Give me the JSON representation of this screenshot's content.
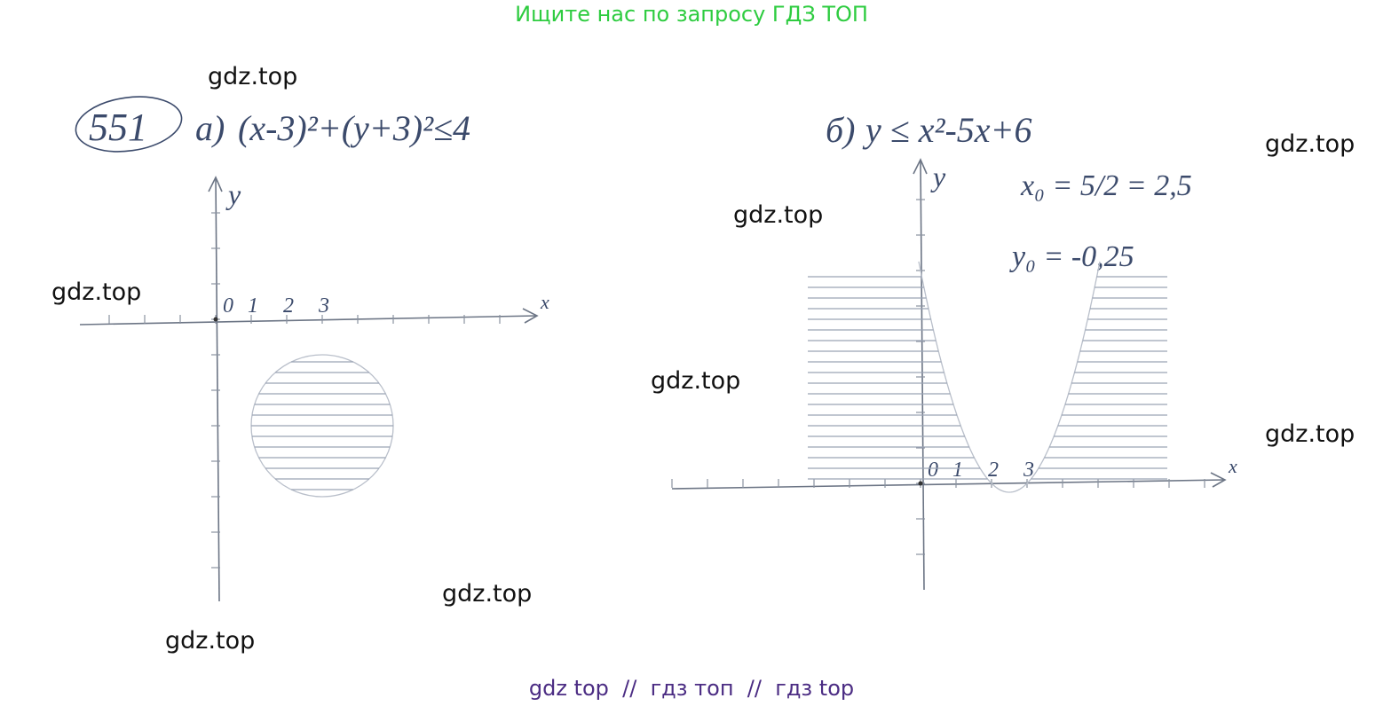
{
  "header": "Ищите нас по запросу ГДЗ ТОП",
  "problem": {
    "number": "551",
    "part_a": {
      "label": "а)",
      "inequality": "(x-3)²+(y+3)²≤4",
      "axis_x": "x",
      "axis_y": "y",
      "ticks": [
        "0",
        "1",
        "2",
        "3"
      ]
    },
    "part_b": {
      "label": "б)",
      "inequality": "y ≤ x²-5x+6",
      "x0": "x₀ = 5/2 = 2,5",
      "y0": "y₀ = -0,25",
      "axis_x": "x",
      "axis_y": "y",
      "ticks": [
        "0",
        "1",
        "2",
        "3"
      ]
    }
  },
  "watermarks": [
    "gdz.top",
    "gdz.top",
    "gdz.top",
    "gdz.top",
    "gdz.top",
    "gdz.top",
    "gdz.top",
    "gdz.top"
  ],
  "footer": "gdz top  //  гдз топ  //  гдз top"
}
